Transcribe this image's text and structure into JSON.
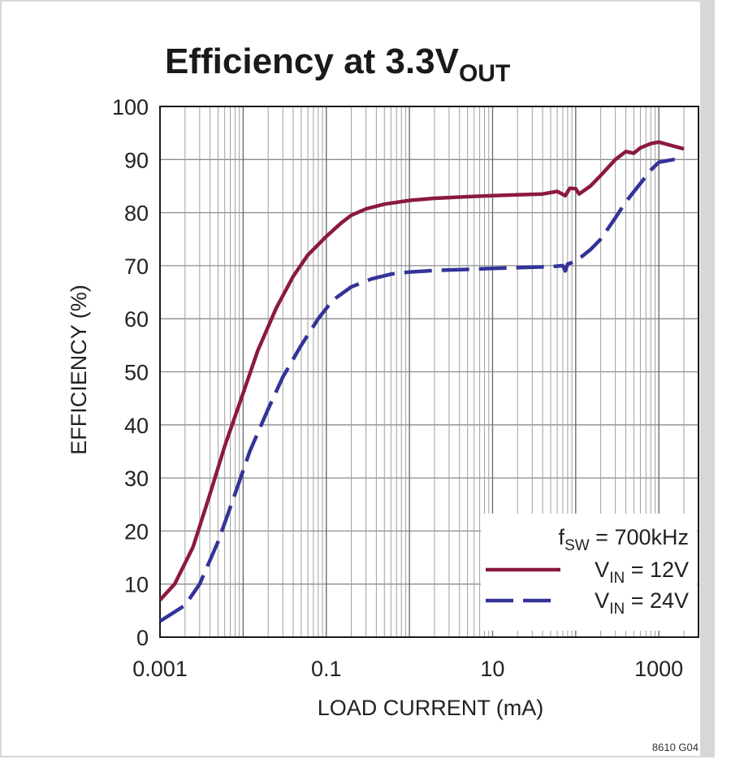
{
  "chart_data": {
    "type": "line",
    "title": "Efficiency at 3.3V",
    "title_subscript": "OUT",
    "xlabel": "LOAD CURRENT (mA)",
    "ylabel": "EFFICIENCY (%)",
    "x_scale": "log",
    "xlim": [
      0.001,
      3000
    ],
    "ylim": [
      0,
      100
    ],
    "x_ticks": [
      {
        "value": 0.001,
        "label": "0.001"
      },
      {
        "value": 0.1,
        "label": "0.1"
      },
      {
        "value": 10,
        "label": "10"
      },
      {
        "value": 1000,
        "label": "1000"
      }
    ],
    "y_ticks": [
      0,
      10,
      20,
      30,
      40,
      50,
      60,
      70,
      80,
      90,
      100
    ],
    "grid": true,
    "annotation": {
      "prefix": "f",
      "subscript": "SW",
      "suffix": " = 700kHz"
    },
    "legend_position": "bottom-right",
    "footer_code": "8610 G04",
    "series": [
      {
        "name": "V_IN = 12V",
        "label_prefix": "V",
        "label_subscript": "IN",
        "label_suffix": " = 12V",
        "color": "#8b1a3c",
        "dash": "solid",
        "points": [
          [
            0.001,
            7
          ],
          [
            0.0015,
            10
          ],
          [
            0.0025,
            17
          ],
          [
            0.004,
            27
          ],
          [
            0.006,
            36
          ],
          [
            0.01,
            46
          ],
          [
            0.015,
            54
          ],
          [
            0.025,
            62
          ],
          [
            0.04,
            68
          ],
          [
            0.06,
            72
          ],
          [
            0.1,
            75.5
          ],
          [
            0.15,
            78
          ],
          [
            0.2,
            79.5
          ],
          [
            0.3,
            80.7
          ],
          [
            0.5,
            81.6
          ],
          [
            1,
            82.3
          ],
          [
            2,
            82.7
          ],
          [
            5,
            83
          ],
          [
            10,
            83.2
          ],
          [
            40,
            83.5
          ],
          [
            60,
            84
          ],
          [
            75,
            83.2
          ],
          [
            85,
            84.6
          ],
          [
            100,
            84.5
          ],
          [
            110,
            83.5
          ],
          [
            150,
            85
          ],
          [
            200,
            87
          ],
          [
            300,
            90
          ],
          [
            400,
            91.5
          ],
          [
            500,
            91.2
          ],
          [
            600,
            92.2
          ],
          [
            800,
            93
          ],
          [
            1000,
            93.3
          ],
          [
            1300,
            92.8
          ],
          [
            2000,
            92
          ]
        ]
      },
      {
        "name": "V_IN = 24V",
        "label_prefix": "V",
        "label_subscript": "IN",
        "label_suffix": " = 24V",
        "color": "#333399",
        "dash": "long-dash",
        "points": [
          [
            0.001,
            3
          ],
          [
            0.002,
            6
          ],
          [
            0.003,
            10
          ],
          [
            0.005,
            18
          ],
          [
            0.008,
            27
          ],
          [
            0.012,
            35
          ],
          [
            0.02,
            43
          ],
          [
            0.03,
            49
          ],
          [
            0.05,
            55
          ],
          [
            0.08,
            60
          ],
          [
            0.12,
            63.5
          ],
          [
            0.2,
            66
          ],
          [
            0.35,
            67.5
          ],
          [
            0.6,
            68.4
          ],
          [
            1,
            68.8
          ],
          [
            2,
            69.1
          ],
          [
            5,
            69.3
          ],
          [
            10,
            69.5
          ],
          [
            50,
            69.8
          ],
          [
            70,
            70
          ],
          [
            75,
            69
          ],
          [
            80,
            70.3
          ],
          [
            100,
            70.8
          ],
          [
            150,
            73
          ],
          [
            200,
            75
          ],
          [
            300,
            79
          ],
          [
            400,
            82
          ],
          [
            600,
            85.5
          ],
          [
            800,
            88
          ],
          [
            1000,
            89.5
          ],
          [
            1500,
            90
          ],
          [
            2000,
            90
          ]
        ]
      }
    ]
  }
}
